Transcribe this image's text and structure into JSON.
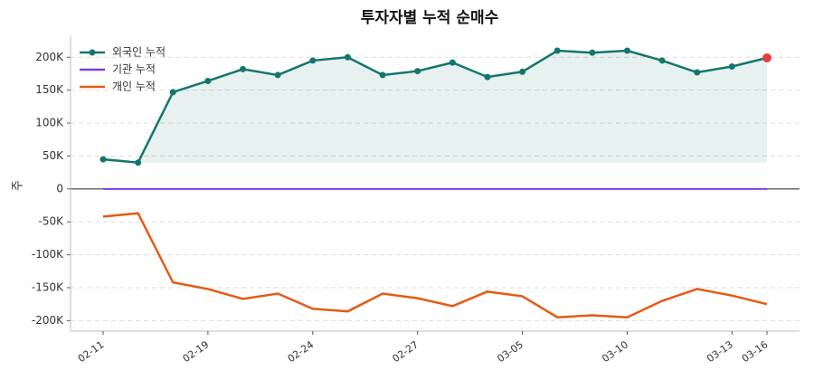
{
  "chart_data": {
    "type": "line",
    "title": "투자자별 누적 순매수",
    "y_label": "주",
    "categories": [
      "02-11",
      null,
      null,
      "02-19",
      null,
      null,
      "02-24",
      null,
      null,
      "02-27",
      null,
      null,
      "03-05",
      null,
      null,
      "03-10",
      null,
      null,
      "03-13",
      "03-16"
    ],
    "series": [
      {
        "name": "외국인 누적",
        "color": "#13766c",
        "values": [
          45000,
          40000,
          147000,
          164000,
          182000,
          173000,
          195000,
          200000,
          173000,
          179000,
          192000,
          170000,
          178000,
          210000,
          207000,
          210000,
          195000,
          177000,
          186000,
          199000
        ]
      },
      {
        "name": "기관 누적",
        "color": "#7b3fe4",
        "values": [
          0,
          0,
          0,
          0,
          0,
          0,
          0,
          0,
          0,
          0,
          0,
          0,
          0,
          0,
          0,
          0,
          0,
          0,
          0,
          0
        ]
      },
      {
        "name": "개인 누적",
        "color": "#e55a14",
        "values": [
          -42000,
          -37000,
          -142000,
          -152000,
          -167000,
          -159000,
          -182000,
          -186000,
          -159000,
          -166000,
          -178000,
          -156000,
          -163000,
          -195000,
          -192000,
          -195000,
          -170000,
          -152000,
          -162000,
          -175000
        ]
      }
    ],
    "ylim": [
      -216000,
      232000
    ],
    "yticks": [
      {
        "value": -200000,
        "label": "-200K"
      },
      {
        "value": -150000,
        "label": "-150K"
      },
      {
        "value": -100000,
        "label": "-100K"
      },
      {
        "value": -50000,
        "label": "-50K"
      },
      0,
      {
        "value": 50000,
        "label": "50K"
      },
      {
        "value": 100000,
        "label": "100K"
      },
      {
        "value": 150000,
        "label": "150K"
      },
      {
        "value": 200000,
        "label": "200K"
      }
    ],
    "grid": true,
    "legend": "upper left"
  }
}
